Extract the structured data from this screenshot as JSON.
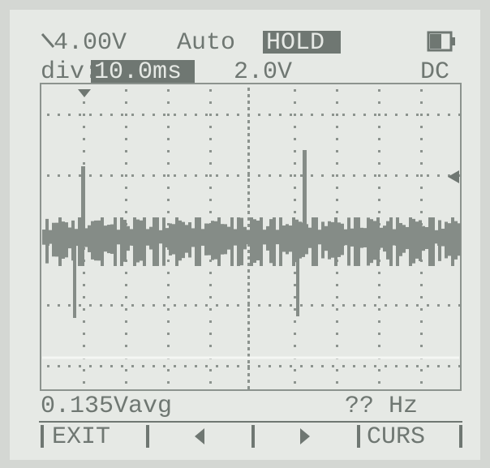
{
  "header": {
    "trigger_level": "4.00V",
    "mode": "Auto",
    "hold": "HOLD",
    "div_label": "div:",
    "timebase": "10.0ms",
    "volts_div": "2.0V",
    "coupling": "DC"
  },
  "readout": {
    "measurement": "0.135Vavg",
    "frequency": "?? Hz"
  },
  "softkeys": {
    "left": "EXIT",
    "right": "CURS"
  }
}
